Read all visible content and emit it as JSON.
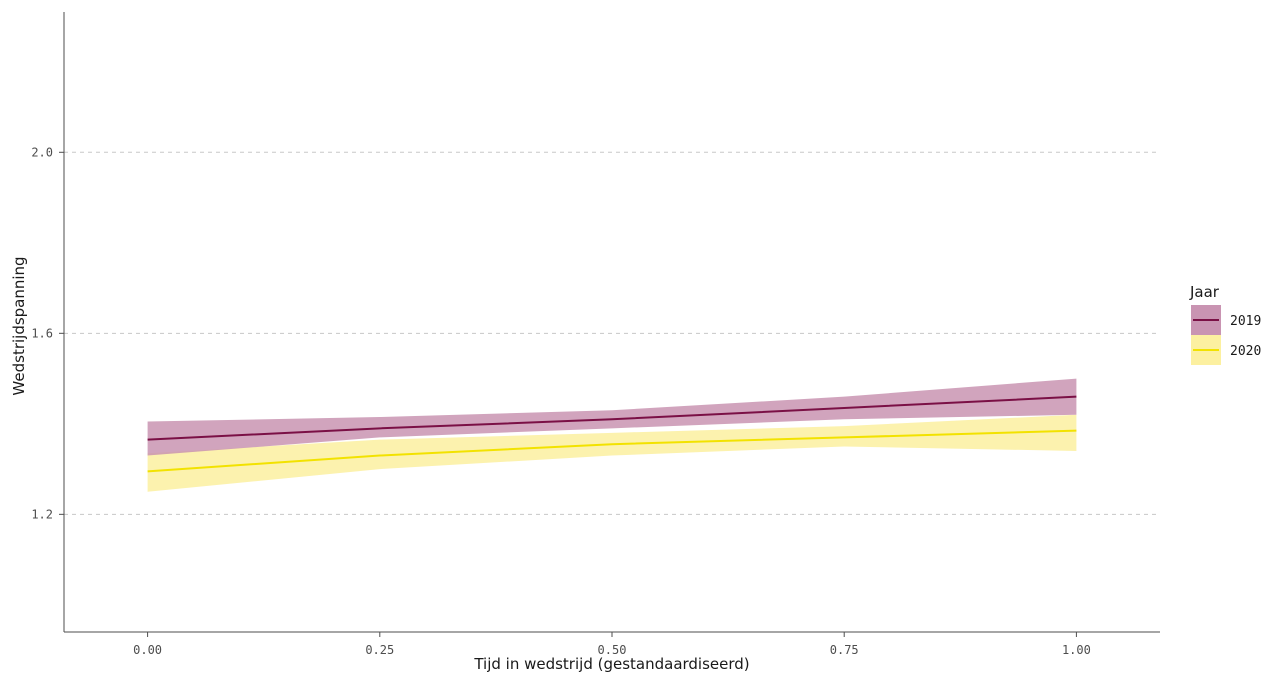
{
  "chart_data": {
    "type": "line",
    "xlabel": "Tijd in wedstrijd (gestandaardiseerd)",
    "ylabel": "Wedstrijdspanning",
    "xlim": [
      -0.09,
      1.09
    ],
    "ylim": [
      0.94,
      2.31
    ],
    "x_ticks": [
      0.0,
      0.25,
      0.5,
      0.75,
      1.0
    ],
    "x_tick_labels": [
      "0.00",
      "0.25",
      "0.50",
      "0.75",
      "1.00"
    ],
    "y_ticks": [
      1.2,
      1.6,
      2.0
    ],
    "y_tick_labels": [
      "1.2",
      "1.6",
      "2.0"
    ],
    "grid": "horizontal-major-dashed",
    "legend": {
      "title": "Jaar",
      "position": "right"
    },
    "series": [
      {
        "name": "2019",
        "color": "#7a1045",
        "band_color": "#c994b2",
        "x": [
          0.0,
          0.25,
          0.5,
          0.75,
          1.0
        ],
        "y": [
          1.365,
          1.39,
          1.41,
          1.435,
          1.46
        ],
        "lower": [
          1.33,
          1.37,
          1.39,
          1.41,
          1.42
        ],
        "upper": [
          1.405,
          1.415,
          1.43,
          1.46,
          1.5
        ]
      },
      {
        "name": "2020",
        "color": "#f2e200",
        "band_color": "#fcf0a0",
        "x": [
          0.0,
          0.25,
          0.5,
          0.75,
          1.0
        ],
        "y": [
          1.295,
          1.33,
          1.355,
          1.37,
          1.385
        ],
        "lower": [
          1.25,
          1.3,
          1.33,
          1.35,
          1.34
        ],
        "upper": [
          1.335,
          1.365,
          1.38,
          1.395,
          1.42
        ]
      }
    ]
  }
}
